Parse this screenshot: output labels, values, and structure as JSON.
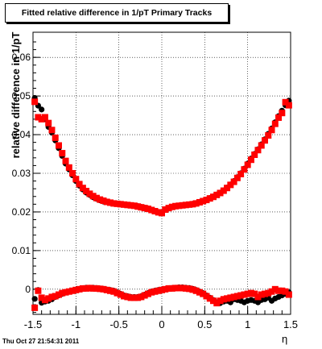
{
  "title": "Fitted relative difference in 1/pT  Primary Tracks",
  "timestamp": "Thu Oct 27 21:54:31 2011",
  "chart_data": {
    "type": "scatter",
    "title": "Fitted relative difference in 1/pT  Primary Tracks",
    "xlabel": "η",
    "ylabel": "relative difference in 1/pT",
    "xlim": [
      -1.5,
      1.5
    ],
    "ylim": [
      -0.0065,
      0.0665
    ],
    "x_ticks": [
      "-1.5",
      "-1",
      "-0.5",
      "0",
      "0.5",
      "1",
      "1.5"
    ],
    "y_ticks": [
      "0",
      "0.01",
      "0.02",
      "0.03",
      "0.04",
      "0.05",
      "0.06"
    ],
    "grid": true,
    "series": [
      {
        "color": "#000000",
        "marker": "circle",
        "x": [
          -1.48,
          -1.44,
          -1.4,
          -1.36,
          -1.32,
          -1.28,
          -1.24,
          -1.2,
          -1.16,
          -1.12,
          -1.08,
          -1.04,
          -1.0,
          -0.96,
          -0.92,
          -0.88,
          -0.84,
          -0.8,
          -0.76,
          -0.72,
          -0.68,
          -0.64,
          -0.6,
          -0.56,
          -0.52,
          -0.48,
          -0.44,
          -0.4,
          -0.36,
          -0.32,
          -0.28,
          -0.24,
          -0.2,
          -0.16,
          -0.12,
          -0.08,
          -0.04,
          0.0,
          0.04,
          0.08,
          0.12,
          0.16,
          0.2,
          0.24,
          0.28,
          0.32,
          0.36,
          0.4,
          0.44,
          0.48,
          0.52,
          0.56,
          0.6,
          0.64,
          0.68,
          0.72,
          0.76,
          0.8,
          0.84,
          0.88,
          0.92,
          0.96,
          1.0,
          1.04,
          1.08,
          1.12,
          1.16,
          1.2,
          1.24,
          1.28,
          1.32,
          1.36,
          1.4,
          1.44,
          1.48
        ],
        "y": [
          -0.0025,
          -0.0002,
          -0.0035,
          -0.0032,
          -0.003,
          -0.0026,
          -0.002,
          -0.0016,
          -0.0012,
          -0.0008,
          -0.0006,
          -0.0004,
          -0.0002,
          0.0,
          0.0002,
          0.0004,
          0.0004,
          0.0004,
          0.0003,
          0.0002,
          0.0001,
          -0.0001,
          -0.0002,
          -0.0004,
          -0.0008,
          -0.0012,
          -0.0016,
          -0.0018,
          -0.002,
          -0.002,
          -0.002,
          -0.0018,
          -0.0014,
          -0.001,
          -0.0006,
          -0.0004,
          -0.0002,
          -0.0001,
          0.0,
          0.0002,
          0.0003,
          0.0004,
          0.0005,
          0.0005,
          0.0004,
          0.0003,
          0.0001,
          -0.0002,
          -0.0006,
          -0.001,
          -0.0016,
          -0.0022,
          -0.0028,
          -0.0034,
          -0.0036,
          -0.0032,
          -0.003,
          -0.0034,
          -0.0026,
          -0.0028,
          -0.003,
          -0.0034,
          -0.003,
          -0.0028,
          -0.003,
          -0.0034,
          -0.0028,
          -0.0026,
          -0.0022,
          -0.003,
          -0.0024,
          -0.002,
          -0.0016,
          -0.0012,
          -0.0008
        ],
        "x_upper": [
          -1.48,
          -1.44,
          -1.4,
          -1.36,
          -1.32,
          -1.28,
          -1.24,
          -1.2,
          -1.16,
          -1.12,
          -1.08,
          -1.04,
          -1.0,
          -0.96,
          -0.92,
          -0.88,
          -0.84,
          -0.8,
          -0.76,
          -0.72,
          -0.68,
          -0.64,
          -0.6,
          -0.56,
          -0.52,
          -0.48,
          -0.44,
          -0.4,
          -0.36,
          -0.32,
          -0.28,
          -0.24,
          -0.2,
          -0.16,
          -0.12,
          -0.08,
          -0.04,
          0.0,
          0.04,
          0.08,
          0.12,
          0.16,
          0.2,
          0.24,
          0.28,
          0.32,
          0.36,
          0.4,
          0.44,
          0.48,
          0.52,
          0.56,
          0.6,
          0.64,
          0.68,
          0.72,
          0.76,
          0.8,
          0.84,
          0.88,
          0.92,
          0.96,
          1.0,
          1.04,
          1.08,
          1.12,
          1.16,
          1.2,
          1.24,
          1.28,
          1.32,
          1.36,
          1.4,
          1.44,
          1.48
        ],
        "y_upper": [
          0.0495,
          0.0475,
          0.0465,
          0.044,
          0.042,
          0.0405,
          0.0385,
          0.0365,
          0.0345,
          0.0325,
          0.031,
          0.0295,
          0.028,
          0.0268,
          0.0258,
          0.025,
          0.0244,
          0.0238,
          0.0234,
          0.023,
          0.0227,
          0.0225,
          0.0223,
          0.0222,
          0.0221,
          0.022,
          0.0219,
          0.0218,
          0.0217,
          0.0216,
          0.0215,
          0.0213,
          0.0211,
          0.0209,
          0.0206,
          0.0203,
          0.02,
          0.0198,
          0.0207,
          0.021,
          0.0213,
          0.0215,
          0.0216,
          0.0217,
          0.0218,
          0.0219,
          0.0221,
          0.0223,
          0.0226,
          0.0229,
          0.0232,
          0.0236,
          0.024,
          0.0245,
          0.025,
          0.0256,
          0.0263,
          0.0271,
          0.028,
          0.029,
          0.03,
          0.0312,
          0.0325,
          0.0338,
          0.035,
          0.0362,
          0.0375,
          0.0388,
          0.0402,
          0.0416,
          0.0432,
          0.0448,
          0.0462,
          0.0476,
          0.0488
        ]
      },
      {
        "color": "#ff0000",
        "marker": "square",
        "x": [
          -1.48,
          -1.44,
          -1.4,
          -1.36,
          -1.32,
          -1.28,
          -1.24,
          -1.2,
          -1.16,
          -1.12,
          -1.08,
          -1.04,
          -1.0,
          -0.96,
          -0.92,
          -0.88,
          -0.84,
          -0.8,
          -0.76,
          -0.72,
          -0.68,
          -0.64,
          -0.6,
          -0.56,
          -0.52,
          -0.48,
          -0.44,
          -0.4,
          -0.36,
          -0.32,
          -0.28,
          -0.24,
          -0.2,
          -0.16,
          -0.12,
          -0.08,
          -0.04,
          0.0,
          0.04,
          0.08,
          0.12,
          0.16,
          0.2,
          0.24,
          0.28,
          0.32,
          0.36,
          0.4,
          0.44,
          0.48,
          0.52,
          0.56,
          0.6,
          0.64,
          0.68,
          0.72,
          0.76,
          0.8,
          0.84,
          0.88,
          0.92,
          0.96,
          1.0,
          1.04,
          1.08,
          1.12,
          1.16,
          1.2,
          1.24,
          1.28,
          1.32,
          1.36,
          1.4,
          1.44,
          1.48
        ],
        "y": [
          -0.0048,
          -0.0004,
          -0.0022,
          -0.0028,
          -0.0024,
          -0.002,
          -0.0018,
          -0.0014,
          -0.001,
          -0.0008,
          -0.0006,
          -0.0004,
          -0.0002,
          0.0,
          0.0002,
          0.0002,
          0.0003,
          0.0002,
          0.0002,
          0.0001,
          0.0,
          -0.0002,
          -0.0004,
          -0.0006,
          -0.001,
          -0.0014,
          -0.0018,
          -0.002,
          -0.0022,
          -0.0022,
          -0.0022,
          -0.002,
          -0.0016,
          -0.0012,
          -0.0008,
          -0.0006,
          -0.0004,
          -0.0002,
          0.0,
          0.0002,
          0.0002,
          0.0003,
          0.0003,
          0.0003,
          0.0002,
          0.0001,
          -0.0001,
          -0.0004,
          -0.0008,
          -0.0012,
          -0.0018,
          -0.0024,
          -0.003,
          -0.0036,
          -0.003,
          -0.0026,
          -0.0024,
          -0.0022,
          -0.002,
          -0.0018,
          -0.0016,
          -0.0014,
          -0.0012,
          -0.001,
          -0.0012,
          -0.002,
          -0.0014,
          -0.0012,
          -0.001,
          -0.0006,
          0.0,
          -0.0004,
          -0.0004,
          -0.0006,
          -0.0014
        ],
        "x_upper": [
          -1.48,
          -1.44,
          -1.4,
          -1.36,
          -1.32,
          -1.28,
          -1.24,
          -1.2,
          -1.16,
          -1.12,
          -1.08,
          -1.04,
          -1.0,
          -0.96,
          -0.92,
          -0.88,
          -0.84,
          -0.8,
          -0.76,
          -0.72,
          -0.68,
          -0.64,
          -0.6,
          -0.56,
          -0.52,
          -0.48,
          -0.44,
          -0.4,
          -0.36,
          -0.32,
          -0.28,
          -0.24,
          -0.2,
          -0.16,
          -0.12,
          -0.08,
          -0.04,
          0.0,
          0.04,
          0.08,
          0.12,
          0.16,
          0.2,
          0.24,
          0.28,
          0.32,
          0.36,
          0.4,
          0.44,
          0.48,
          0.52,
          0.56,
          0.6,
          0.64,
          0.68,
          0.72,
          0.76,
          0.8,
          0.84,
          0.88,
          0.92,
          0.96,
          1.0,
          1.04,
          1.08,
          1.12,
          1.16,
          1.2,
          1.24,
          1.28,
          1.32,
          1.36,
          1.4,
          1.44,
          1.48
        ],
        "y_upper": [
          0.0485,
          0.0445,
          0.044,
          0.0445,
          0.043,
          0.0412,
          0.0392,
          0.0372,
          0.0352,
          0.0332,
          0.0315,
          0.03,
          0.0285,
          0.0272,
          0.0262,
          0.0254,
          0.0247,
          0.0241,
          0.0236,
          0.0232,
          0.0229,
          0.0226,
          0.0224,
          0.0222,
          0.0221,
          0.022,
          0.0219,
          0.0218,
          0.0217,
          0.0216,
          0.0214,
          0.0212,
          0.021,
          0.0208,
          0.0205,
          0.0202,
          0.0199,
          0.0197,
          0.0206,
          0.021,
          0.0213,
          0.0215,
          0.0216,
          0.0217,
          0.0218,
          0.0219,
          0.022,
          0.0222,
          0.0225,
          0.0228,
          0.0231,
          0.0235,
          0.0239,
          0.0244,
          0.0249,
          0.0255,
          0.0262,
          0.027,
          0.0278,
          0.0288,
          0.0298,
          0.031,
          0.0322,
          0.0335,
          0.0348,
          0.036,
          0.0372,
          0.0385,
          0.0398,
          0.0412,
          0.0428,
          0.0444,
          0.0456,
          0.0484,
          0.0476
        ]
      }
    ]
  }
}
